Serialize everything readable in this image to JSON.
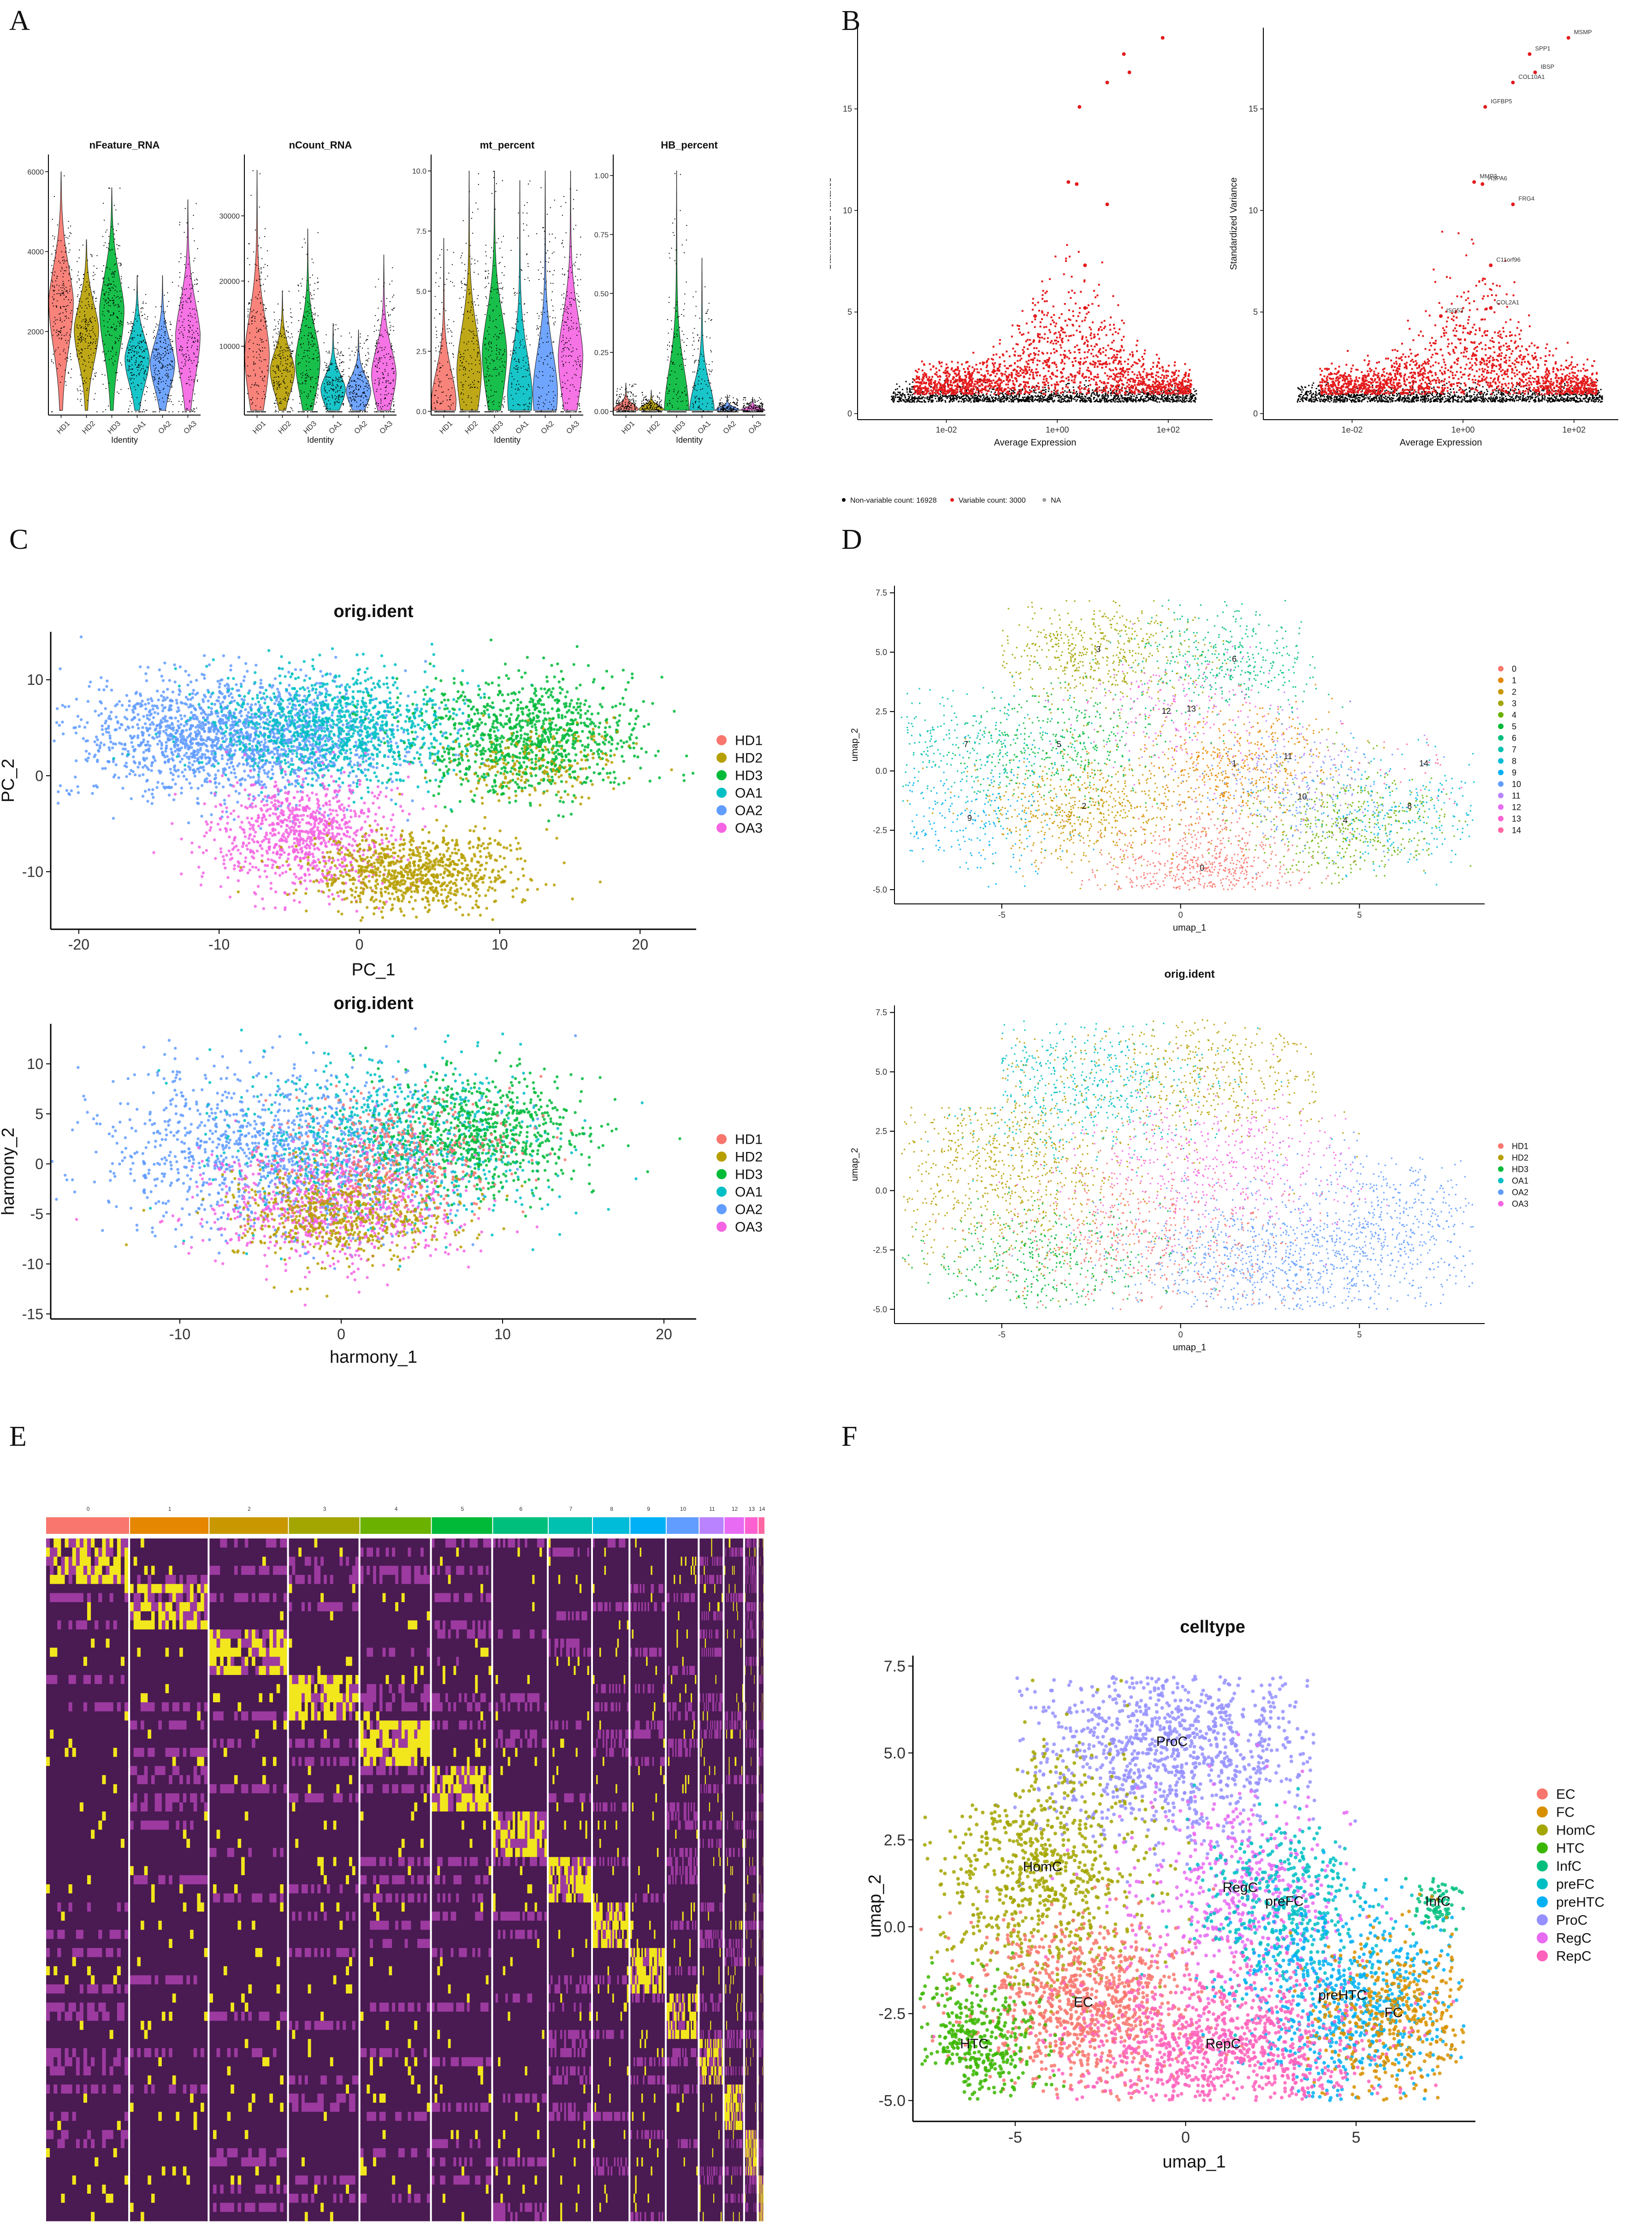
{
  "panels": {
    "A": "A",
    "B": "B",
    "C": "C",
    "D": "D",
    "E": "E",
    "F": "F"
  },
  "colors": {
    "hd1": "#F8766D",
    "hd2": "#B79F00",
    "hd3": "#00BA38",
    "oa1": "#00BFC4",
    "oa2": "#619CFF",
    "oa3": "#F564E3",
    "heat_low": "#4a1a52",
    "heat_mid": "#9c3aa0",
    "heat_high": "#f2e61c",
    "variable": "#e41a1c",
    "nonvariable": "#000000"
  },
  "chart_data": [
    {
      "id": "A",
      "type": "violin",
      "xlabel": "Identity",
      "categories": [
        "HD1",
        "HD2",
        "HD3",
        "OA1",
        "OA2",
        "OA3"
      ],
      "subplots": [
        {
          "title": "nFeature_RNA",
          "ylim": [
            0,
            6200
          ],
          "yticks": [
            2000,
            4000,
            6000
          ],
          "tick_labels": [
            "2000",
            "4000",
            "6000"
          ],
          "medians": [
            2800,
            2100,
            2600,
            1350,
            1250,
            1950
          ],
          "max": [
            6000,
            4300,
            5600,
            3400,
            3400,
            5300
          ]
        },
        {
          "title": "nCount_RNA",
          "ylim": [
            0,
            38000
          ],
          "yticks": [
            10000,
            20000,
            30000
          ],
          "tick_labels": [
            "10000",
            "20000",
            "30000"
          ],
          "medians": [
            9000,
            6500,
            8000,
            3500,
            3300,
            6000
          ],
          "max": [
            37000,
            18500,
            28000,
            13500,
            12500,
            24000
          ]
        },
        {
          "title": "mt_percent",
          "ylim": [
            0,
            10.3
          ],
          "yticks": [
            0,
            2.5,
            5,
            7.5,
            10
          ],
          "tick_labels": [
            "0.0",
            "2.5",
            "5.0",
            "7.5",
            "10.0"
          ],
          "medians": [
            0.5,
            1.8,
            2.5,
            0.8,
            0.9,
            2.4
          ],
          "max": [
            7.2,
            10,
            10,
            9.6,
            10,
            10
          ]
        },
        {
          "title": "HB_percent",
          "ylim": [
            0,
            1.05
          ],
          "yticks": [
            0,
            0.25,
            0.5,
            0.75,
            1.0
          ],
          "tick_labels": [
            "0.00",
            "0.25",
            "0.50",
            "0.75",
            "1.00"
          ],
          "medians": [
            0.01,
            0.01,
            0.01,
            0.01,
            0.005,
            0.005
          ],
          "max": [
            0.12,
            0.09,
            1.02,
            0.65,
            0.07,
            0.06
          ]
        }
      ]
    },
    {
      "id": "B",
      "type": "scatter",
      "xlabel": "Average Expression",
      "ylabel": "Standardized Variance",
      "xtick_labels": [
        "1e-02",
        "1e+00",
        "1e+02"
      ],
      "yticks": [
        0,
        5,
        10,
        15
      ],
      "ylim": [
        0,
        19
      ],
      "legend": [
        "Non-variable count: 16928",
        "Variable count: 3000",
        "NA"
      ],
      "top_genes": [
        {
          "label": "MSMP",
          "x": 1.9,
          "y": 18.5
        },
        {
          "label": "SPP1",
          "x": 1.2,
          "y": 17.7
        },
        {
          "label": "IBSP",
          "x": 1.3,
          "y": 16.8
        },
        {
          "label": "COL10A1",
          "x": 0.9,
          "y": 16.3
        },
        {
          "label": "IGFBP5",
          "x": 0.4,
          "y": 15.1
        },
        {
          "label": "MMP3",
          "x": 0.2,
          "y": 11.4
        },
        {
          "label": "HSPA6",
          "x": 0.35,
          "y": 11.3
        },
        {
          "label": "FRG4",
          "x": 0.9,
          "y": 10.3
        },
        {
          "label": "C11orf96",
          "x": 0.5,
          "y": 7.3
        },
        {
          "label": "COL2A1",
          "x": 0.5,
          "y": 5.2
        },
        {
          "label": "ISG53",
          "x": -0.4,
          "y": 4.8
        }
      ]
    },
    {
      "id": "C1",
      "type": "scatter",
      "title": "orig.ident",
      "xlabel": "PC_1",
      "ylabel": "PC_2",
      "xlim": [
        -22,
        24
      ],
      "ylim": [
        -16,
        15
      ],
      "xticks": [
        -20,
        -10,
        0,
        10,
        20
      ],
      "yticks": [
        -10,
        0,
        10
      ],
      "legend": [
        "HD1",
        "HD2",
        "HD3",
        "OA1",
        "OA2",
        "OA3"
      ]
    },
    {
      "id": "C2",
      "type": "scatter",
      "title": "orig.ident",
      "xlabel": "harmony_1",
      "ylabel": "harmony_2",
      "xlim": [
        -18,
        22
      ],
      "ylim": [
        -15.5,
        14
      ],
      "xticks": [
        -10,
        0,
        10,
        20
      ],
      "yticks": [
        -15,
        -10,
        -5,
        0,
        5,
        10
      ],
      "legend": [
        "HD1",
        "HD2",
        "HD3",
        "OA1",
        "OA2",
        "OA3"
      ]
    },
    {
      "id": "D1",
      "type": "scatter",
      "title": "",
      "xlabel": "umap_1",
      "ylabel": "umap_2",
      "xlim": [
        -8,
        8.5
      ],
      "ylim": [
        -5.6,
        7.8
      ],
      "xticks": [
        -5,
        0,
        5
      ],
      "yticks": [
        -5.0,
        -2.5,
        0.0,
        2.5,
        5.0,
        7.5
      ],
      "tick_labels_y": [
        "-5.0",
        "-2.5",
        "0.0",
        "2.5",
        "5.0",
        "7.5"
      ],
      "legend": [
        "0",
        "1",
        "2",
        "3",
        "4",
        "5",
        "6",
        "7",
        "8",
        "9",
        "10",
        "11",
        "12",
        "13",
        "14"
      ],
      "cluster_labels": [
        {
          "label": "0",
          "x": 0.6,
          "y": -4.2
        },
        {
          "label": "1",
          "x": 1.5,
          "y": 0.2
        },
        {
          "label": "2",
          "x": -2.7,
          "y": -1.6
        },
        {
          "label": "3",
          "x": -2.3,
          "y": 5.0
        },
        {
          "label": "4",
          "x": 4.6,
          "y": -2.2
        },
        {
          "label": "5",
          "x": -3.4,
          "y": 1.0
        },
        {
          "label": "6",
          "x": 1.5,
          "y": 4.6
        },
        {
          "label": "7",
          "x": -6.0,
          "y": 1.0
        },
        {
          "label": "8",
          "x": 6.4,
          "y": -1.6
        },
        {
          "label": "9",
          "x": -5.9,
          "y": -2.1
        },
        {
          "label": "10",
          "x": 3.4,
          "y": -1.2
        },
        {
          "label": "11",
          "x": 3.0,
          "y": 0.5
        },
        {
          "label": "12",
          "x": -0.4,
          "y": 2.4
        },
        {
          "label": "13",
          "x": 0.3,
          "y": 2.5
        },
        {
          "label": "14",
          "x": 6.8,
          "y": 0.2
        }
      ]
    },
    {
      "id": "D2",
      "type": "scatter",
      "title": "orig.ident",
      "xlabel": "umap_1",
      "ylabel": "umap_2",
      "xlim": [
        -8,
        8.5
      ],
      "ylim": [
        -5.6,
        7.8
      ],
      "xticks": [
        -5,
        0,
        5
      ],
      "yticks": [
        -5.0,
        -2.5,
        0.0,
        2.5,
        5.0,
        7.5
      ],
      "tick_labels_y": [
        "-5.0",
        "-2.5",
        "0.0",
        "2.5",
        "5.0",
        "7.5"
      ],
      "legend": [
        "HD1",
        "HD2",
        "HD3",
        "OA1",
        "OA2",
        "OA3"
      ]
    },
    {
      "id": "E",
      "type": "heatmap",
      "clusters": [
        "0",
        "1",
        "2",
        "3",
        "4",
        "5",
        "6",
        "7",
        "8",
        "9",
        "10",
        "11",
        "12",
        "13",
        "14"
      ],
      "cluster_widths": [
        148,
        140,
        140,
        126,
        126,
        108,
        98,
        78,
        66,
        64,
        58,
        44,
        36,
        24,
        12
      ],
      "cluster_colors": [
        "#F8766D",
        "#E58700",
        "#C99800",
        "#A3A500",
        "#6BB100",
        "#00BA38",
        "#00BF7D",
        "#00C0AF",
        "#00BCD8",
        "#00B0F6",
        "#619CFF",
        "#B983FF",
        "#E76BF3",
        "#FD61D1",
        "#FF67A4"
      ],
      "n_genes": 75
    },
    {
      "id": "F",
      "type": "scatter",
      "title": "celltype",
      "xlabel": "umap_1",
      "ylabel": "umap_2",
      "xlim": [
        -8,
        8.5
      ],
      "ylim": [
        -5.6,
        7.8
      ],
      "xticks": [
        -5,
        0,
        5
      ],
      "yticks": [
        -5.0,
        -2.5,
        0.0,
        2.5,
        5.0,
        7.5
      ],
      "tick_labels_y": [
        "-5.0",
        "-2.5",
        "0.0",
        "2.5",
        "5.0",
        "7.5"
      ],
      "legend": [
        "EC",
        "FC",
        "HomC",
        "HTC",
        "InfC",
        "preFC",
        "preHTC",
        "ProC",
        "RegC",
        "RepC"
      ],
      "legend_colors": [
        "#F8766D",
        "#D89000",
        "#A3A500",
        "#39B600",
        "#00BF7D",
        "#00BFC4",
        "#00B0F6",
        "#9590FF",
        "#E76BF3",
        "#FF62BC"
      ],
      "cell_labels": [
        {
          "label": "ProC",
          "x": -0.4,
          "y": 5.2
        },
        {
          "label": "HomC",
          "x": -4.2,
          "y": 1.6
        },
        {
          "label": "RegC",
          "x": 1.6,
          "y": 1.0
        },
        {
          "label": "preFC",
          "x": 2.9,
          "y": 0.6
        },
        {
          "label": "InfC",
          "x": 7.4,
          "y": 0.6
        },
        {
          "label": "EC",
          "x": -3.0,
          "y": -2.3
        },
        {
          "label": "preHTC",
          "x": 4.6,
          "y": -2.1
        },
        {
          "label": "FC",
          "x": 6.1,
          "y": -2.6
        },
        {
          "label": "HTC",
          "x": -6.2,
          "y": -3.5
        },
        {
          "label": "RepC",
          "x": 1.1,
          "y": -3.5
        }
      ]
    }
  ]
}
